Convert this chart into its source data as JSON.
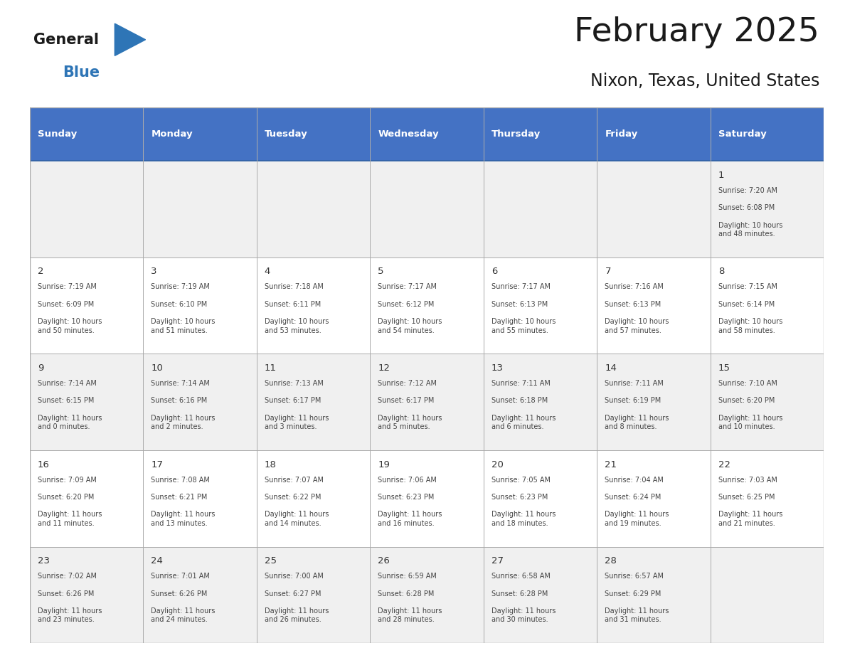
{
  "title": "February 2025",
  "subtitle": "Nixon, Texas, United States",
  "header_bg": "#4472c4",
  "header_text_color": "#ffffff",
  "days_of_week": [
    "Sunday",
    "Monday",
    "Tuesday",
    "Wednesday",
    "Thursday",
    "Friday",
    "Saturday"
  ],
  "cell_bg_odd": "#f0f0f0",
  "cell_bg_even": "#ffffff",
  "text_color": "#444444",
  "day_num_color": "#333333",
  "logo_general_color": "#1a1a1a",
  "logo_blue_color": "#2e75b6",
  "border_color": "#aaaaaa",
  "header_line_color": "#2e5fa3",
  "calendar": [
    [
      null,
      null,
      null,
      null,
      null,
      null,
      {
        "day": 1,
        "sunrise": "7:20 AM",
        "sunset": "6:08 PM",
        "daylight": "10 hours\nand 48 minutes."
      }
    ],
    [
      {
        "day": 2,
        "sunrise": "7:19 AM",
        "sunset": "6:09 PM",
        "daylight": "10 hours\nand 50 minutes."
      },
      {
        "day": 3,
        "sunrise": "7:19 AM",
        "sunset": "6:10 PM",
        "daylight": "10 hours\nand 51 minutes."
      },
      {
        "day": 4,
        "sunrise": "7:18 AM",
        "sunset": "6:11 PM",
        "daylight": "10 hours\nand 53 minutes."
      },
      {
        "day": 5,
        "sunrise": "7:17 AM",
        "sunset": "6:12 PM",
        "daylight": "10 hours\nand 54 minutes."
      },
      {
        "day": 6,
        "sunrise": "7:17 AM",
        "sunset": "6:13 PM",
        "daylight": "10 hours\nand 55 minutes."
      },
      {
        "day": 7,
        "sunrise": "7:16 AM",
        "sunset": "6:13 PM",
        "daylight": "10 hours\nand 57 minutes."
      },
      {
        "day": 8,
        "sunrise": "7:15 AM",
        "sunset": "6:14 PM",
        "daylight": "10 hours\nand 58 minutes."
      }
    ],
    [
      {
        "day": 9,
        "sunrise": "7:14 AM",
        "sunset": "6:15 PM",
        "daylight": "11 hours\nand 0 minutes."
      },
      {
        "day": 10,
        "sunrise": "7:14 AM",
        "sunset": "6:16 PM",
        "daylight": "11 hours\nand 2 minutes."
      },
      {
        "day": 11,
        "sunrise": "7:13 AM",
        "sunset": "6:17 PM",
        "daylight": "11 hours\nand 3 minutes."
      },
      {
        "day": 12,
        "sunrise": "7:12 AM",
        "sunset": "6:17 PM",
        "daylight": "11 hours\nand 5 minutes."
      },
      {
        "day": 13,
        "sunrise": "7:11 AM",
        "sunset": "6:18 PM",
        "daylight": "11 hours\nand 6 minutes."
      },
      {
        "day": 14,
        "sunrise": "7:11 AM",
        "sunset": "6:19 PM",
        "daylight": "11 hours\nand 8 minutes."
      },
      {
        "day": 15,
        "sunrise": "7:10 AM",
        "sunset": "6:20 PM",
        "daylight": "11 hours\nand 10 minutes."
      }
    ],
    [
      {
        "day": 16,
        "sunrise": "7:09 AM",
        "sunset": "6:20 PM",
        "daylight": "11 hours\nand 11 minutes."
      },
      {
        "day": 17,
        "sunrise": "7:08 AM",
        "sunset": "6:21 PM",
        "daylight": "11 hours\nand 13 minutes."
      },
      {
        "day": 18,
        "sunrise": "7:07 AM",
        "sunset": "6:22 PM",
        "daylight": "11 hours\nand 14 minutes."
      },
      {
        "day": 19,
        "sunrise": "7:06 AM",
        "sunset": "6:23 PM",
        "daylight": "11 hours\nand 16 minutes."
      },
      {
        "day": 20,
        "sunrise": "7:05 AM",
        "sunset": "6:23 PM",
        "daylight": "11 hours\nand 18 minutes."
      },
      {
        "day": 21,
        "sunrise": "7:04 AM",
        "sunset": "6:24 PM",
        "daylight": "11 hours\nand 19 minutes."
      },
      {
        "day": 22,
        "sunrise": "7:03 AM",
        "sunset": "6:25 PM",
        "daylight": "11 hours\nand 21 minutes."
      }
    ],
    [
      {
        "day": 23,
        "sunrise": "7:02 AM",
        "sunset": "6:26 PM",
        "daylight": "11 hours\nand 23 minutes."
      },
      {
        "day": 24,
        "sunrise": "7:01 AM",
        "sunset": "6:26 PM",
        "daylight": "11 hours\nand 24 minutes."
      },
      {
        "day": 25,
        "sunrise": "7:00 AM",
        "sunset": "6:27 PM",
        "daylight": "11 hours\nand 26 minutes."
      },
      {
        "day": 26,
        "sunrise": "6:59 AM",
        "sunset": "6:28 PM",
        "daylight": "11 hours\nand 28 minutes."
      },
      {
        "day": 27,
        "sunrise": "6:58 AM",
        "sunset": "6:28 PM",
        "daylight": "11 hours\nand 30 minutes."
      },
      {
        "day": 28,
        "sunrise": "6:57 AM",
        "sunset": "6:29 PM",
        "daylight": "11 hours\nand 31 minutes."
      },
      null
    ]
  ]
}
